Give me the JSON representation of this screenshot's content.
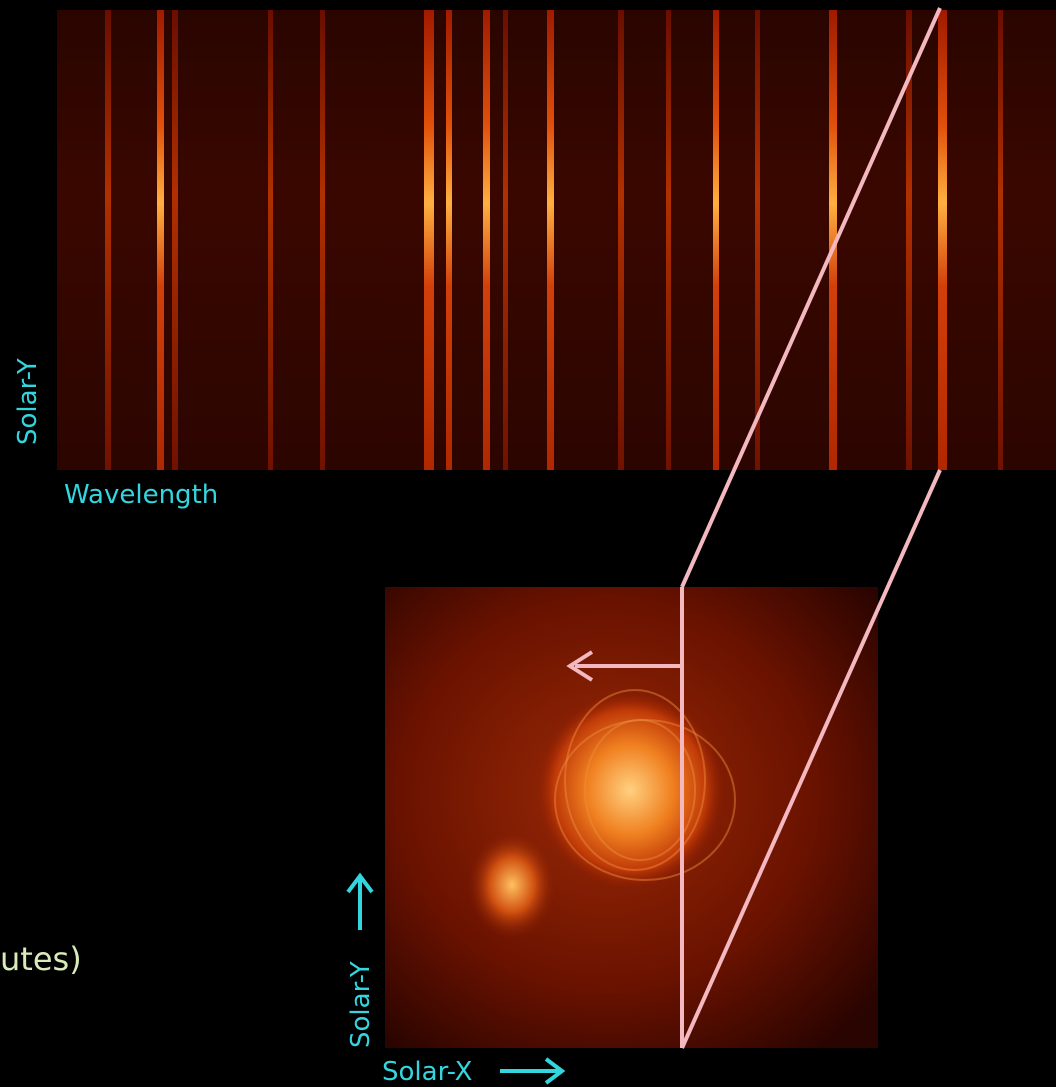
{
  "spectrogram": {
    "y_label": "Solar-Y",
    "x_label": "Wavelength"
  },
  "image": {
    "y_label": "Solar-Y",
    "x_label": "Solar-X"
  },
  "caption_fragment": "utes)"
}
